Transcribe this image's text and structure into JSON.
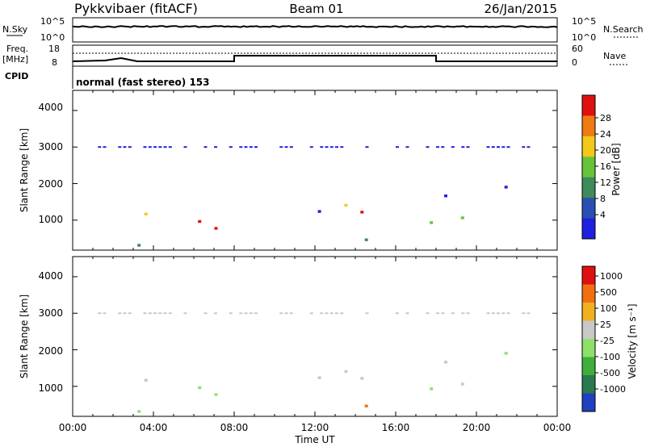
{
  "header": {
    "station": "Pykkvibaer (fitACF)",
    "beam": "Beam 01",
    "date": "26/Jan/2015"
  },
  "sky_panel": {
    "left_label": "N.Sky",
    "left_ticks": [
      "10^5",
      "10^0"
    ],
    "right_ticks": [
      "10^5",
      "10^0"
    ],
    "right_label": "N.Search"
  },
  "freq_panel": {
    "left_label_1": "Freq.",
    "left_label_2": "[MHz]",
    "left_ticks": [
      "18",
      "8"
    ],
    "right_ticks": [
      "60",
      "0"
    ],
    "right_label": "Nave"
  },
  "cpid": {
    "label": "CPID",
    "text": "normal (fast stereo) 153"
  },
  "power_panel": {
    "ylabel": "Slant Range [km]",
    "yticks": [
      "4000",
      "3000",
      "2000",
      "1000"
    ],
    "colorbar_label": "Power [dB]",
    "colorbar_ticks": [
      "28",
      "24",
      "20",
      "16",
      "12",
      "8",
      "4"
    ],
    "colors": [
      "#1f1fe0",
      "#2a4fb0",
      "#3f8a5a",
      "#66c43a",
      "#f2c81a",
      "#f07a14",
      "#e01010"
    ]
  },
  "velocity_panel": {
    "ylabel": "Slant Range [km]",
    "yticks": [
      "4000",
      "3000",
      "2000",
      "1000"
    ],
    "colorbar_label": "Velocity [m s⁻¹]",
    "colorbar_ticks": [
      "1000",
      "500",
      "100",
      "25",
      "-25",
      "-100",
      "-500",
      "-1000"
    ],
    "colors": [
      "#2040c0",
      "#2a7a50",
      "#3fae3a",
      "#8ee06a",
      "#c8c8c8",
      "#f0b020",
      "#f07010",
      "#e01010"
    ]
  },
  "time_axis": {
    "label": "Time UT",
    "ticks": [
      "00:00",
      "04:00",
      "08:00",
      "12:00",
      "16:00",
      "20:00",
      "00:00"
    ]
  },
  "chart_data": {
    "type": "heatmap",
    "title": "Pykkvibaer (fitACF)  Beam 01  26/Jan/2015",
    "x": {
      "label": "Time UT",
      "range_hours": [
        0,
        24
      ]
    },
    "y": {
      "label": "Slant Range [km]",
      "range": [
        180,
        4550
      ]
    },
    "power_db_range": [
      0,
      30
    ],
    "velocity_range": [
      -1000,
      1000
    ]
  }
}
